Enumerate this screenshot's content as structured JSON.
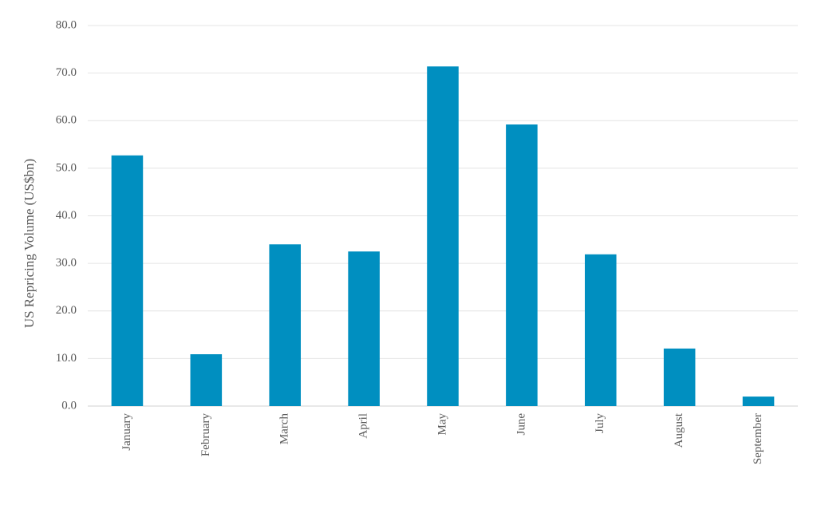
{
  "chart_data": {
    "type": "bar",
    "y_label": "US Repricing Volume (US$bn)",
    "categories": [
      "January",
      "February",
      "March",
      "April",
      "May",
      "June",
      "July",
      "August",
      "September"
    ],
    "values": [
      52.7,
      10.9,
      34.0,
      32.5,
      71.4,
      59.2,
      31.9,
      12.1,
      2.0
    ],
    "color": "#008fc0",
    "ylim": [
      0,
      80
    ],
    "yticks": [
      {
        "value": 0,
        "label": "0.0"
      },
      {
        "value": 10,
        "label": "10.0"
      },
      {
        "value": 20,
        "label": "20.0"
      },
      {
        "value": 30,
        "label": "30.0"
      },
      {
        "value": 40,
        "label": "40.0"
      },
      {
        "value": 50,
        "label": "50.0"
      },
      {
        "value": 60,
        "label": "60.0"
      },
      {
        "value": 70,
        "label": "70.0"
      },
      {
        "value": 80,
        "label": "80.0"
      }
    ],
    "grid": true
  }
}
